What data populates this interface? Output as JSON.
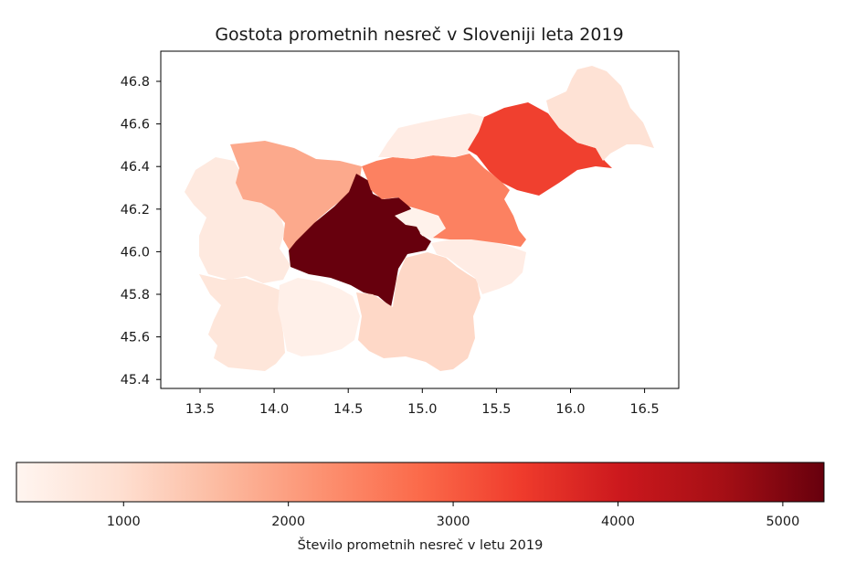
{
  "title": "Gostota prometnih nesreč v Sloveniji leta 2019",
  "map": {
    "x_ticks": [
      "13.5",
      "14.0",
      "14.5",
      "15.0",
      "15.5",
      "16.0",
      "16.5"
    ],
    "y_ticks": [
      "46.8",
      "46.6",
      "46.4",
      "46.2",
      "46.0",
      "45.8",
      "45.6",
      "45.4"
    ],
    "regions": [
      {
        "id": "goriska",
        "value": 700
      },
      {
        "id": "gorenjska",
        "value": 1850
      },
      {
        "id": "obalno-kraska",
        "value": 800
      },
      {
        "id": "primorsko-notranjska",
        "value": 500
      },
      {
        "id": "osrednjeslovenska",
        "value": 5250
      },
      {
        "id": "zasavska",
        "value": 450
      },
      {
        "id": "jugovzhodna",
        "value": 1100
      },
      {
        "id": "posavska",
        "value": 600
      },
      {
        "id": "savinjska",
        "value": 2450
      },
      {
        "id": "koroska",
        "value": 600
      },
      {
        "id": "podravska",
        "value": 3350
      },
      {
        "id": "pomurska",
        "value": 900
      }
    ]
  },
  "colorbar": {
    "colormap": "Reds",
    "range": [
      350,
      5250
    ],
    "ticks": [
      "1000",
      "2000",
      "3000",
      "4000",
      "5000"
    ],
    "label": "Število prometnih nesreč v letu 2019"
  },
  "colors": {
    "stop0": "#fff5f0",
    "stop1": "#fee0d2",
    "stop2": "#fcbba1",
    "stop3": "#fc9272",
    "stop4": "#fb6a4a",
    "stop5": "#ef3b2c",
    "stop6": "#cb181d",
    "stop7": "#a50f15",
    "stop8": "#67000d"
  }
}
